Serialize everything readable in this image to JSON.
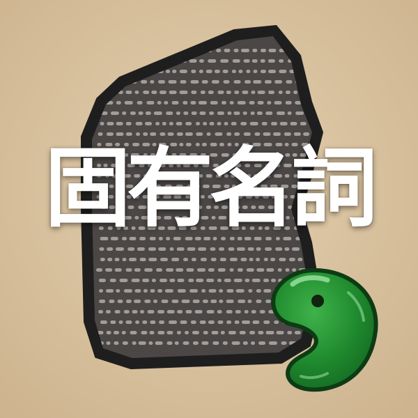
{
  "title": "固有名詞",
  "colors": {
    "background": "#d9c4a3",
    "stone_outline": "#1e1e1e",
    "stone_fill": "#4a4746",
    "stone_text_marks": "#a39c97",
    "magatama_green": "#1f8a2e",
    "magatama_outline": "#0d3b14",
    "title_text": "#ffffff"
  },
  "icons": {
    "stone": "rosetta-stone-icon",
    "bead": "magatama-icon"
  }
}
